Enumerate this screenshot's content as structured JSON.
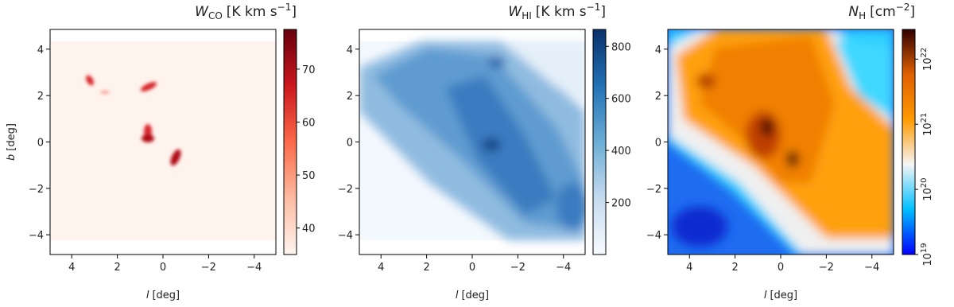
{
  "chart_data": [
    {
      "type": "heatmap",
      "title": {
        "symbol": "W",
        "sub": "CO",
        "unit": "[K km s",
        "sup": "−1",
        "end": "]"
      },
      "xlabel": {
        "symbol": "l",
        "unit": "[deg]"
      },
      "ylabel": {
        "symbol": "b",
        "unit": "[deg]"
      },
      "xlim": [
        4.95,
        -4.95
      ],
      "ylim": [
        -4.85,
        4.85
      ],
      "xticks": [
        4,
        2,
        0,
        {
          "value": -2,
          "label": "−2"
        },
        {
          "value": -4,
          "label": "−4"
        }
      ],
      "yticks": [
        {
          "value": -4,
          "label": "−4"
        },
        {
          "value": -2,
          "label": "−2"
        },
        0,
        2,
        4
      ],
      "clim": [
        35,
        77.5
      ],
      "cticks": [
        40,
        50,
        60,
        70
      ],
      "log": false,
      "cmap": [
        "#fff5f0",
        "#fcbba1",
        "#fb6a4a",
        "#cb181d",
        "#67000d"
      ]
    },
    {
      "type": "heatmap",
      "title": {
        "symbol": "W",
        "sub": "HI",
        "unit": "[K km s",
        "sup": "−1",
        "end": "]"
      },
      "xlabel": {
        "symbol": "l",
        "unit": "[deg]"
      },
      "xlim": [
        4.95,
        -4.95
      ],
      "ylim": [
        -4.85,
        4.85
      ],
      "xticks": [
        4,
        2,
        0,
        {
          "value": -2,
          "label": "−2"
        },
        {
          "value": -4,
          "label": "−4"
        }
      ],
      "yticks": [
        {
          "value": -4,
          "label": "−4"
        },
        {
          "value": -2,
          "label": "−2"
        },
        0,
        2,
        4
      ],
      "clim": [
        0,
        865
      ],
      "cticks": [
        200,
        400,
        600,
        800
      ],
      "log": false,
      "cmap": [
        "#f7fbff",
        "#c6dbef",
        "#6baed6",
        "#2171b5",
        "#08306b"
      ]
    },
    {
      "type": "heatmap",
      "title": {
        "symbol": "N",
        "sub": "H",
        "unit": "[cm",
        "sup": "−2",
        "end": "]"
      },
      "xlabel": {
        "symbol": "l",
        "unit": "[deg]"
      },
      "xlim": [
        4.95,
        -4.95
      ],
      "ylim": [
        -4.85,
        4.85
      ],
      "xticks": [
        4,
        2,
        0,
        {
          "value": -2,
          "label": "−2"
        },
        {
          "value": -4,
          "label": "−4"
        }
      ],
      "yticks": [
        {
          "value": -4,
          "label": "−4"
        },
        {
          "value": -2,
          "label": "−2"
        },
        0,
        2,
        4
      ],
      "clim": [
        1e+19,
        2.86e+22
      ],
      "log": true,
      "cticks": [
        {
          "value": 1e+19,
          "label": "10",
          "exp": "19"
        },
        {
          "value": 1e+20,
          "label": "10",
          "exp": "20"
        },
        {
          "value": 1e+21,
          "label": "10",
          "exp": "21"
        },
        {
          "value": 1e+22,
          "label": "10",
          "exp": "22"
        }
      ],
      "cmap": [
        "#0000ff",
        "#00bfff",
        "#f5f5f5",
        "#ff9a00",
        "#e06000",
        "#300000"
      ]
    }
  ]
}
